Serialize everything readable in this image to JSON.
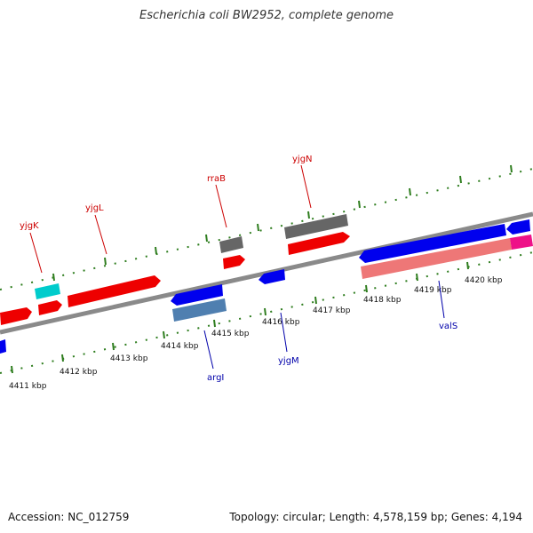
{
  "title": "Escherichia coli BW2952, complete genome",
  "footer": {
    "accession": "Accession: NC_012759",
    "summary": "Topology: circular; Length: 4,578,159 bp; Genes: 4,194"
  },
  "colors": {
    "backbone": "#8a8a8a",
    "tick": "#2e7d1e",
    "forward_gene": "#ee0000",
    "reverse_gene": "#0000ee",
    "rna": "#666666",
    "cyan_feature": "#00cccc",
    "magenta_feature": "#ee1188",
    "pink_cds": "#ee7777",
    "steel_cds": "#4f7fb0",
    "label_forward": "#cc0000",
    "label_reverse": "#0000aa"
  },
  "ticks": [
    "4411 kbp",
    "4412 kbp",
    "4413 kbp",
    "4414 kbp",
    "4415 kbp",
    "4416 kbp",
    "4417 kbp",
    "4418 kbp",
    "4419 kbp",
    "4420 kbp"
  ],
  "gene_labels": [
    {
      "name": "yjgK",
      "strand": "forward"
    },
    {
      "name": "yjgL",
      "strand": "forward"
    },
    {
      "name": "rraB",
      "strand": "forward"
    },
    {
      "name": "yjgN",
      "strand": "forward"
    },
    {
      "name": "argI",
      "strand": "reverse"
    },
    {
      "name": "yjgM",
      "strand": "reverse"
    },
    {
      "name": "valS",
      "strand": "reverse"
    }
  ]
}
